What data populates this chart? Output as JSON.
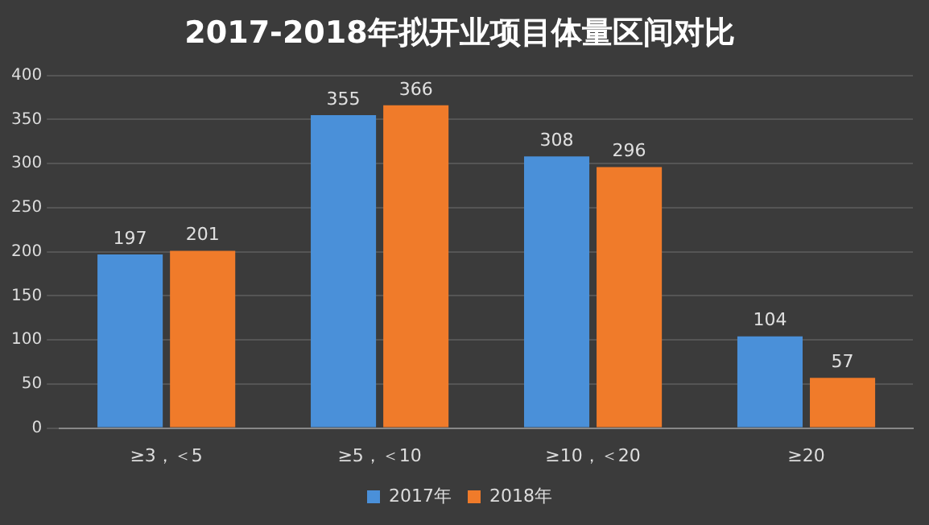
{
  "chart_data": {
    "type": "bar",
    "title": "2017-2018年拟开业项目体量区间对比",
    "categories": [
      "≥3，＜5",
      "≥5，＜10",
      "≥10，＜20",
      "≥20"
    ],
    "series": [
      {
        "name": "2017年",
        "color": "#4a90d9",
        "values": [
          197,
          355,
          308,
          104
        ]
      },
      {
        "name": "2018年",
        "color": "#f07b2a",
        "values": [
          201,
          366,
          296,
          57
        ]
      }
    ],
    "ylim": [
      0,
      400
    ],
    "yticks": [
      0,
      50,
      100,
      150,
      200,
      250,
      300,
      350,
      400
    ],
    "grid": "y",
    "legend": "bottom",
    "data_labels": true
  }
}
